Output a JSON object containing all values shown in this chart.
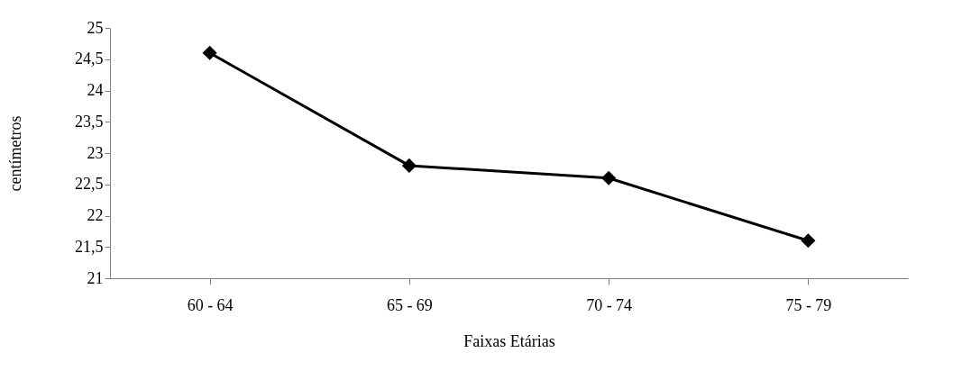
{
  "chart_data": {
    "type": "line",
    "xlabel": "Faixas Etárias",
    "ylabel": "centímetros",
    "categories": [
      "60 - 64",
      "65 - 69",
      "70 - 74",
      "75 - 79"
    ],
    "series": [
      {
        "color": "#000000",
        "values": [
          24.6,
          22.8,
          22.6,
          21.6
        ]
      }
    ],
    "ylim": [
      21,
      25
    ],
    "yticks": [
      21,
      {
        "value": 21.5,
        "label": "21,5"
      },
      22,
      {
        "value": 22.5,
        "label": "22,5"
      },
      23,
      {
        "value": 23.5,
        "label": "23,5"
      },
      24,
      {
        "value": 24.5,
        "label": "24,5"
      },
      25
    ],
    "grid": false,
    "legend": false,
    "marker": "diamond",
    "line_style": "solid"
  }
}
